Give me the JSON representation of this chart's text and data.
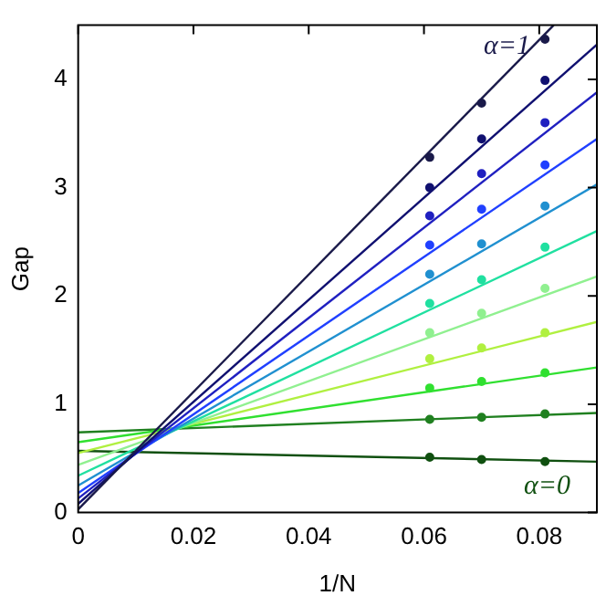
{
  "chart_data": {
    "type": "scatter",
    "xlabel": "1/N",
    "ylabel": "Gap",
    "xlim": [
      0,
      0.09
    ],
    "ylim": [
      0,
      4.5
    ],
    "xticks": [
      0,
      0.02,
      0.04,
      0.06,
      0.08
    ],
    "yticks": [
      0,
      1,
      2,
      3,
      4
    ],
    "grid": false,
    "legend": false,
    "marker": "circle",
    "annotations": [
      "α=1",
      "α=0"
    ],
    "series": [
      {
        "type": "line",
        "marker": "none",
        "color": "#1a1a4a",
        "x": [
          0,
          0.0825
        ],
        "values": [
          0.03,
          4.5
        ]
      },
      {
        "color": "#1a1a4a",
        "x": [
          0.061,
          0.07,
          0.081
        ],
        "values": [
          3.28,
          3.78,
          4.37
        ]
      },
      {
        "type": "line",
        "marker": "none",
        "color": "#101070",
        "x": [
          0,
          0.09
        ],
        "values": [
          0.08,
          4.32
        ]
      },
      {
        "color": "#101070",
        "x": [
          0.061,
          0.07,
          0.081
        ],
        "values": [
          3.0,
          3.45,
          3.99
        ]
      },
      {
        "type": "line",
        "marker": "none",
        "color": "#2020c0",
        "x": [
          0,
          0.09
        ],
        "values": [
          0.13,
          3.88
        ]
      },
      {
        "color": "#2020c0",
        "x": [
          0.061,
          0.07,
          0.081
        ],
        "values": [
          2.74,
          3.13,
          3.6
        ]
      },
      {
        "type": "line",
        "marker": "none",
        "color": "#2040ff",
        "x": [
          0,
          0.09
        ],
        "values": [
          0.18,
          3.45
        ]
      },
      {
        "color": "#2040ff",
        "x": [
          0.061,
          0.07,
          0.081
        ],
        "values": [
          2.47,
          2.8,
          3.21
        ]
      },
      {
        "type": "line",
        "marker": "none",
        "color": "#2090d0",
        "x": [
          0,
          0.09
        ],
        "values": [
          0.25,
          3.03
        ]
      },
      {
        "color": "#2090d0",
        "x": [
          0.061,
          0.07,
          0.081
        ],
        "values": [
          2.2,
          2.48,
          2.83
        ]
      },
      {
        "type": "line",
        "marker": "none",
        "color": "#20e0a0",
        "x": [
          0,
          0.09
        ],
        "values": [
          0.34,
          2.6
        ]
      },
      {
        "color": "#20e0a0",
        "x": [
          0.061,
          0.07,
          0.081
        ],
        "values": [
          1.93,
          2.15,
          2.45
        ]
      },
      {
        "type": "line",
        "marker": "none",
        "color": "#90f090",
        "x": [
          0,
          0.09
        ],
        "values": [
          0.44,
          2.18
        ]
      },
      {
        "color": "#90f090",
        "x": [
          0.061,
          0.07,
          0.081
        ],
        "values": [
          1.66,
          1.84,
          2.07
        ]
      },
      {
        "type": "line",
        "marker": "none",
        "color": "#b0f040",
        "x": [
          0,
          0.09
        ],
        "values": [
          0.55,
          1.76
        ]
      },
      {
        "color": "#b0f040",
        "x": [
          0.061,
          0.07,
          0.081
        ],
        "values": [
          1.42,
          1.52,
          1.66
        ]
      },
      {
        "type": "line",
        "marker": "none",
        "color": "#30e030",
        "x": [
          0,
          0.09
        ],
        "values": [
          0.65,
          1.34
        ]
      },
      {
        "color": "#30e030",
        "x": [
          0.061,
          0.07,
          0.081
        ],
        "values": [
          1.15,
          1.21,
          1.29
        ]
      },
      {
        "type": "line",
        "marker": "none",
        "color": "#208020",
        "x": [
          0,
          0.09
        ],
        "values": [
          0.74,
          0.92
        ]
      },
      {
        "color": "#208020",
        "x": [
          0.061,
          0.07,
          0.081
        ],
        "values": [
          0.86,
          0.88,
          0.91
        ]
      },
      {
        "type": "line",
        "marker": "none",
        "color": "#105010",
        "x": [
          0,
          0.09
        ],
        "values": [
          0.57,
          0.47
        ]
      },
      {
        "color": "#105010",
        "x": [
          0.061,
          0.07,
          0.081
        ],
        "values": [
          0.51,
          0.49,
          0.47
        ]
      }
    ]
  }
}
